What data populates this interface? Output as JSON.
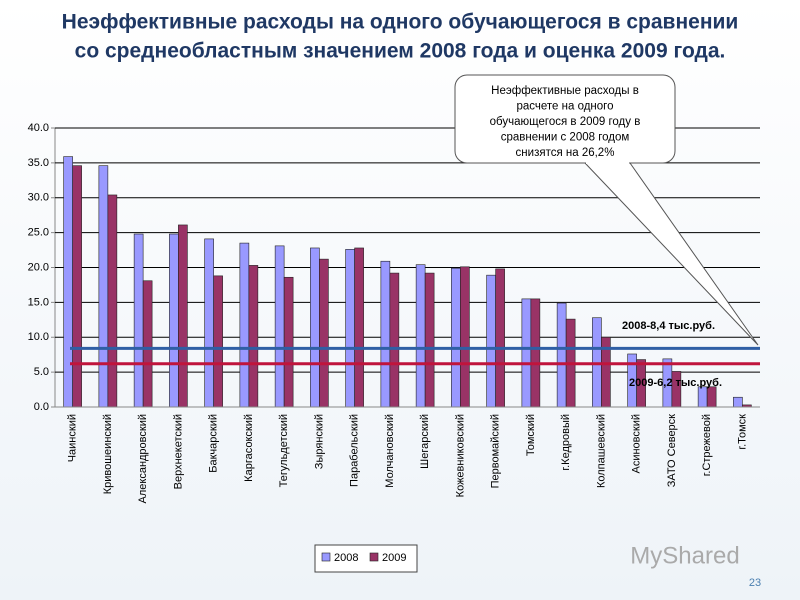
{
  "chart_data": {
    "type": "bar",
    "title": [
      "Неэффективные расходы на одного обучающегося в сравнении",
      "со среднеобластным значением 2008 года и оценка 2009 года."
    ],
    "categories": [
      "Чаинский",
      "Кривошеинский",
      "Александровский",
      "Верхнекетский",
      "Бакчарский",
      "Каргасокский",
      "Тегульдетский",
      "Зырянский",
      "Парабельский",
      "Молчановский",
      "Шегарский",
      "Кожевниковский",
      "Первомайский",
      "Томский",
      "г.Кедровый",
      "Колпашевский",
      "Асиновский",
      "ЗАТО Северск",
      "г.Стрежевой",
      "г.Томск"
    ],
    "series": [
      {
        "name": "2008",
        "color": "#9999ff",
        "values": [
          35.9,
          34.6,
          24.8,
          24.8,
          24.1,
          23.5,
          23.1,
          22.8,
          22.6,
          20.9,
          20.4,
          19.9,
          18.9,
          15.5,
          14.9,
          12.8,
          7.6,
          6.9,
          2.9,
          1.4
        ]
      },
      {
        "name": "2009",
        "color": "#993366",
        "values": [
          34.6,
          30.4,
          18.1,
          26.1,
          18.8,
          20.3,
          18.6,
          21.2,
          22.8,
          19.2,
          19.2,
          20.1,
          19.8,
          15.5,
          12.6,
          10.0,
          6.8,
          5.1,
          2.9,
          0.3
        ]
      }
    ],
    "ylim": [
      0,
      40
    ],
    "yticks": [
      {
        "value": 0,
        "label": "0.0"
      },
      {
        "value": 5,
        "label": "5.0"
      },
      {
        "value": 10,
        "label": "10.0"
      },
      {
        "value": 15,
        "label": "15.0"
      },
      {
        "value": 20,
        "label": "20.0"
      },
      {
        "value": 25,
        "label": "25.0"
      },
      {
        "value": 30,
        "label": "30.0"
      },
      {
        "value": 35,
        "label": "35.0"
      },
      {
        "value": 40,
        "label": "40.0"
      }
    ],
    "grid": true,
    "reference_lines": [
      {
        "value": 8.4,
        "label": "2008-8,4 тыс.руб.",
        "color": "#2f5fa5"
      },
      {
        "value": 6.2,
        "label": "2009-6,2 тыс.руб.",
        "color": "#c0143c"
      }
    ],
    "callout": [
      "Неэффективные расходы в",
      "расчете на одного",
      "обучающегося в 2009 году в",
      "сравнении с 2008 годом",
      "снизятся на 26,2%"
    ],
    "legend": "bottom"
  },
  "watermark": "MyShared",
  "page_number": "23"
}
